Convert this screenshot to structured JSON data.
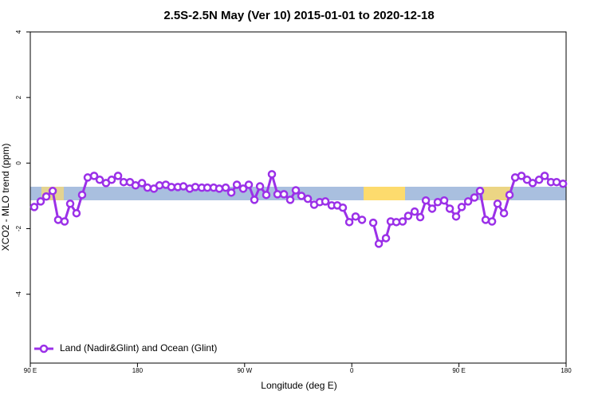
{
  "chart_data": {
    "type": "line",
    "title": "2.5S-2.5N May (Ver 10)   2015-01-01 to 2020-12-18",
    "xlabel": "Longitude (deg E)",
    "ylabel": "XCO2 - MLO trend (ppm)",
    "xlim": [
      90,
      540
    ],
    "ylim": [
      -6.1,
      4
    ],
    "xticks": [
      {
        "value": 90,
        "label": "90 E"
      },
      {
        "value": 180,
        "label": "180"
      },
      {
        "value": 270,
        "label": "90 W"
      },
      {
        "value": 360,
        "label": "0"
      },
      {
        "value": 450,
        "label": "90 E"
      },
      {
        "value": 540,
        "label": "180"
      }
    ],
    "yticks": [
      -4,
      -2,
      0,
      2,
      4
    ],
    "legend": "bottom-left",
    "series": [
      {
        "name": "Land (Nadir&Glint) and Ocean (Glint)",
        "color": "#9b30e8",
        "x": [
          93.3,
          98.7,
          103.4,
          108.8,
          113.4,
          118.8,
          123.5,
          128.8,
          133.5,
          138.2,
          143.6,
          148.3,
          153.6,
          158.3,
          163.7,
          168.4,
          173.7,
          178.4,
          183.8,
          188.4,
          193.8,
          198.5,
          203.8,
          208.5,
          213.9,
          218.6,
          223.9,
          228.6,
          234,
          238.7,
          244,
          248.7,
          254.1,
          258.8,
          263.5,
          268.8,
          273.5,
          278.2,
          282.9,
          288.2,
          292.9,
          297.6,
          303,
          308.3,
          313,
          317.7,
          323.1,
          328.4,
          333.1,
          337.8,
          343.1,
          347.8,
          352.5,
          357.9,
          363.2,
          368.6,
          373.3,
          378,
          382.7,
          388.7,
          392.7,
          397.4,
          402.7,
          407.4,
          412.8,
          417.5,
          422.2,
          427.5,
          432.2,
          437.6,
          442.3,
          447.6,
          452.3,
          457.7,
          463,
          467.7,
          472.4,
          477.8,
          482.4,
          487.8,
          492.5,
          497.2,
          502.5,
          507.2,
          511.9,
          517.3,
          522,
          527.3,
          532,
          537.4
        ],
        "values": [
          -1.34,
          -1.17,
          -1.02,
          -0.85,
          -1.73,
          -1.78,
          -1.24,
          -1.53,
          -0.97,
          -0.44,
          -0.39,
          -0.51,
          -0.61,
          -0.51,
          -0.39,
          -0.58,
          -0.58,
          -0.68,
          -0.61,
          -0.75,
          -0.78,
          -0.68,
          -0.66,
          -0.73,
          -0.73,
          -0.71,
          -0.78,
          -0.73,
          -0.75,
          -0.75,
          -0.75,
          -0.78,
          -0.75,
          -0.9,
          -0.66,
          -0.78,
          -0.66,
          -1.12,
          -0.71,
          -0.97,
          -0.34,
          -0.95,
          -0.95,
          -1.12,
          -0.83,
          -1.0,
          -1.09,
          -1.27,
          -1.19,
          -1.17,
          -1.29,
          -1.29,
          -1.36,
          -1.8,
          -1.63,
          -1.73,
          null,
          -1.82,
          -2.46,
          -2.29,
          -1.78,
          -1.8,
          -1.78,
          -1.61,
          -1.48,
          -1.65,
          -1.14,
          -1.39,
          -1.19,
          -1.14,
          -1.39,
          -1.63,
          -1.34,
          -1.17,
          -1.05,
          -0.85,
          -1.73,
          -1.78,
          -1.24,
          -1.53,
          -0.97,
          -0.44,
          -0.39,
          -0.51,
          -0.61,
          -0.51,
          -0.39,
          -0.58,
          -0.58,
          -0.63
        ]
      }
    ]
  }
}
